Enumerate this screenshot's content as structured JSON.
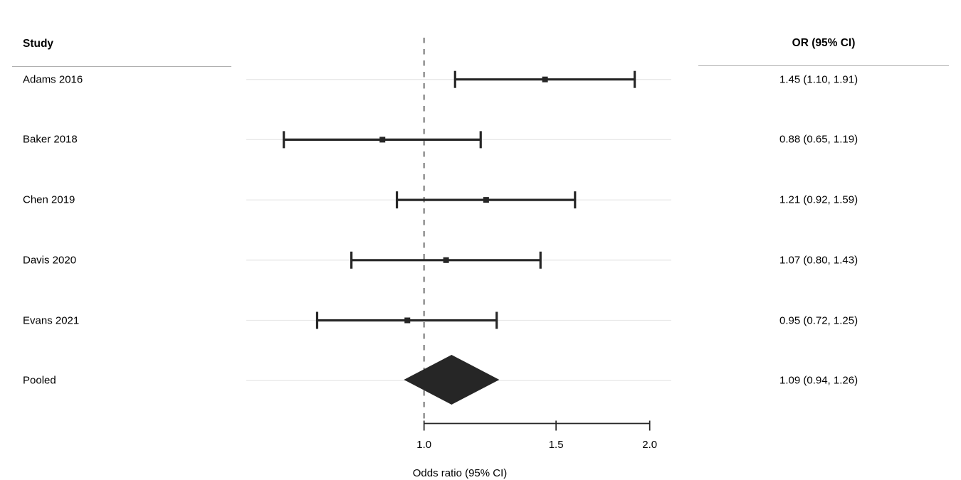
{
  "left_column": {
    "header": "Study"
  },
  "right_column": {
    "header": "OR (95% CI)"
  },
  "axis": {
    "label": "Odds ratio (95% CI)",
    "tick_labels": [
      "1.0",
      "1.5",
      "2.0"
    ],
    "tick_values": [
      1.0,
      1.5,
      2.0
    ],
    "scale": "log",
    "axis_line_range": [
      1.0,
      2.0
    ]
  },
  "colors": {
    "ink": "#262626",
    "text": "#000000",
    "reference_line": "#595959",
    "row_gridline": "#e8e8e8",
    "header_rule": "#b0b0b0",
    "background": "#ffffff"
  },
  "chart_data": {
    "type": "forest",
    "title": "",
    "xlabel": "Odds ratio (95% CI)",
    "x_scale": "log",
    "x_axis_ticks": [
      1.0,
      1.5,
      2.0
    ],
    "reference_value": 1.0,
    "legend": "none",
    "grid": "light horizontal row lines",
    "studies": [
      {
        "label": "Adams 2016",
        "or": 1.45,
        "ci_low": 1.1,
        "ci_high": 1.91,
        "display": "1.45 (1.10, 1.91)"
      },
      {
        "label": "Baker 2018",
        "or": 0.88,
        "ci_low": 0.65,
        "ci_high": 1.19,
        "display": "0.88 (0.65, 1.19)"
      },
      {
        "label": "Chen 2019",
        "or": 1.21,
        "ci_low": 0.92,
        "ci_high": 1.59,
        "display": "1.21 (0.92, 1.59)"
      },
      {
        "label": "Davis 2020",
        "or": 1.07,
        "ci_low": 0.8,
        "ci_high": 1.43,
        "display": "1.07 (0.80, 1.43)"
      },
      {
        "label": "Evans 2021",
        "or": 0.95,
        "ci_low": 0.72,
        "ci_high": 1.25,
        "display": "0.95 (0.72, 1.25)"
      }
    ],
    "pooled": {
      "label": "Pooled",
      "or": 1.09,
      "ci_low": 0.94,
      "ci_high": 1.26,
      "display": "1.09 (0.94, 1.26)"
    }
  }
}
